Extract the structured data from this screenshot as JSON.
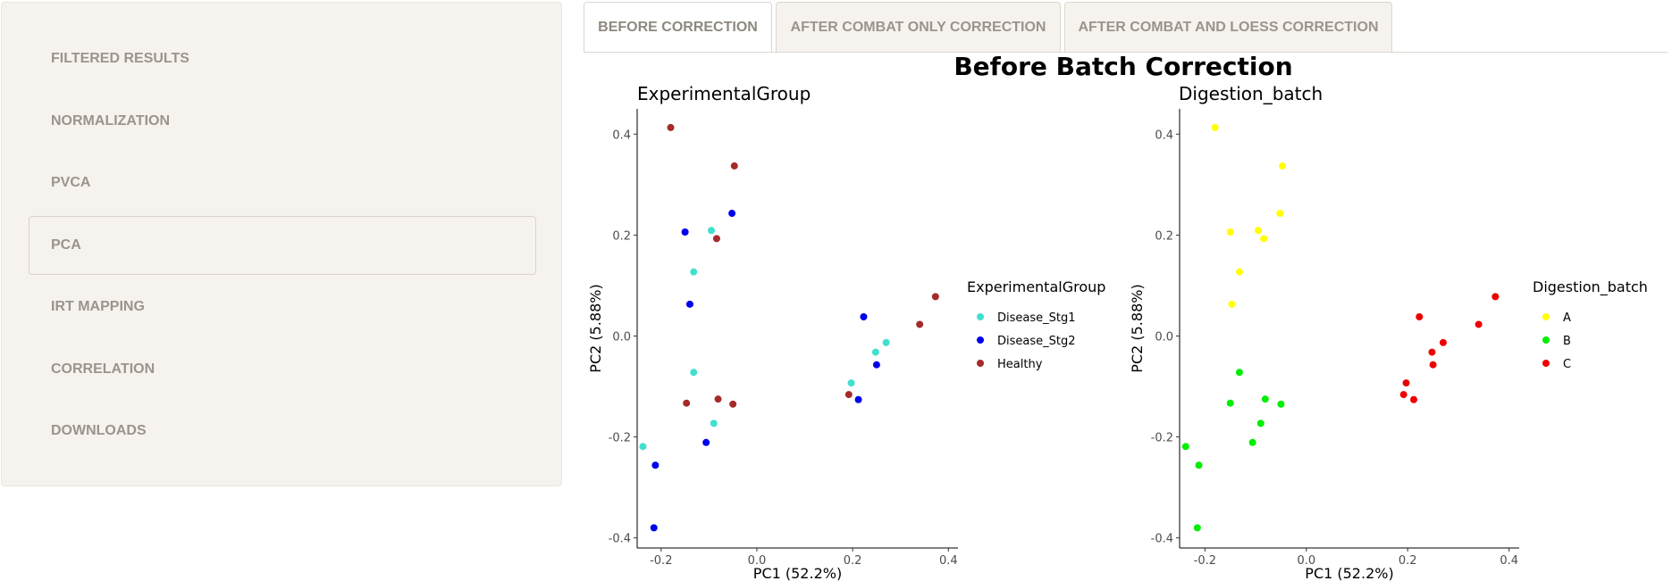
{
  "sidebar": {
    "items": [
      {
        "label": "FILTERED RESULTS",
        "active": false
      },
      {
        "label": "NORMALIZATION",
        "active": false
      },
      {
        "label": "PVCA",
        "active": false
      },
      {
        "label": "PCA",
        "active": true
      },
      {
        "label": "IRT MAPPING",
        "active": false
      },
      {
        "label": "CORRELATION",
        "active": false
      },
      {
        "label": "DOWNLOADS",
        "active": false
      }
    ]
  },
  "tabs": [
    {
      "label": "BEFORE CORRECTION",
      "active": true
    },
    {
      "label": "AFTER COMBAT ONLY CORRECTION",
      "active": false
    },
    {
      "label": "AFTER COMBAT AND LOESS CORRECTION",
      "active": false
    }
  ],
  "chart_data": {
    "type": "scatter",
    "title": "Before Batch Correction",
    "panels": [
      {
        "title": "ExperimentalGroup",
        "xlabel": "PC1 (52.2%)",
        "ylabel": "PC2 (5.88%)",
        "xlim": [
          -0.25,
          0.42
        ],
        "ylim": [
          -0.42,
          0.45
        ],
        "xticks": [
          -0.2,
          0.0,
          0.2,
          0.4
        ],
        "yticks": [
          -0.4,
          -0.2,
          0.0,
          0.2,
          0.4
        ],
        "xtick_labels": [
          "-0.2",
          "0.0",
          "0.2",
          "0.4"
        ],
        "ytick_labels": [
          "-0.4",
          "-0.2",
          "0.0",
          "0.2",
          "0.4"
        ],
        "legend": {
          "title": "ExperimentalGroup",
          "position": "right"
        },
        "series": [
          {
            "name": "Disease_Stg1",
            "color": "#40e0d0",
            "points": [
              [
                -0.238,
                -0.219
              ],
              [
                -0.15,
                0.206
              ],
              [
                -0.132,
                0.127
              ],
              [
                -0.132,
                -0.072
              ],
              [
                -0.095,
                0.209
              ],
              [
                -0.09,
                -0.173
              ],
              [
                0.197,
                -0.093
              ],
              [
                0.248,
                -0.032
              ],
              [
                0.27,
                -0.013
              ]
            ]
          },
          {
            "name": "Disease_Stg2",
            "color": "#0000ee",
            "points": [
              [
                -0.212,
                -0.256
              ],
              [
                -0.215,
                -0.38
              ],
              [
                -0.15,
                0.206
              ],
              [
                -0.14,
                0.063
              ],
              [
                -0.106,
                -0.211
              ],
              [
                -0.052,
                0.243
              ],
              [
                0.212,
                -0.126
              ],
              [
                0.223,
                0.038
              ],
              [
                0.25,
                -0.057
              ]
            ]
          },
          {
            "name": "Healthy",
            "color": "#a52a2a",
            "points": [
              [
                -0.18,
                0.413
              ],
              [
                -0.147,
                -0.133
              ],
              [
                -0.084,
                0.193
              ],
              [
                -0.081,
                -0.125
              ],
              [
                -0.047,
                0.337
              ],
              [
                -0.05,
                -0.135
              ],
              [
                0.192,
                -0.116
              ],
              [
                0.34,
                0.023
              ],
              [
                0.373,
                0.078
              ]
            ]
          }
        ]
      },
      {
        "title": "Digestion_batch",
        "xlabel": "PC1 (52.2%)",
        "ylabel": "PC2 (5.88%)",
        "xlim": [
          -0.25,
          0.42
        ],
        "ylim": [
          -0.42,
          0.45
        ],
        "xticks": [
          -0.2,
          0.0,
          0.2,
          0.4
        ],
        "yticks": [
          -0.4,
          -0.2,
          0.0,
          0.2,
          0.4
        ],
        "xtick_labels": [
          "-0.2",
          "0.0",
          "0.2",
          "0.4"
        ],
        "ytick_labels": [
          "-0.4",
          "-0.2",
          "0.0",
          "0.2",
          "0.4"
        ],
        "legend": {
          "title": "Digestion_batch",
          "position": "right"
        },
        "series": [
          {
            "name": "A",
            "color": "#ffff00",
            "points": [
              [
                -0.18,
                0.413
              ],
              [
                -0.15,
                0.206
              ],
              [
                -0.147,
                0.063
              ],
              [
                -0.132,
                0.127
              ],
              [
                -0.095,
                0.209
              ],
              [
                -0.084,
                0.193
              ],
              [
                -0.052,
                0.243
              ],
              [
                -0.047,
                0.337
              ]
            ]
          },
          {
            "name": "B",
            "color": "#00ee00",
            "points": [
              [
                -0.238,
                -0.219
              ],
              [
                -0.212,
                -0.256
              ],
              [
                -0.215,
                -0.38
              ],
              [
                -0.15,
                -0.133
              ],
              [
                -0.132,
                -0.072
              ],
              [
                -0.106,
                -0.211
              ],
              [
                -0.09,
                -0.173
              ],
              [
                -0.081,
                -0.125
              ],
              [
                -0.05,
                -0.135
              ]
            ]
          },
          {
            "name": "C",
            "color": "#ee0000",
            "points": [
              [
                0.192,
                -0.116
              ],
              [
                0.197,
                -0.093
              ],
              [
                0.212,
                -0.126
              ],
              [
                0.223,
                0.038
              ],
              [
                0.248,
                -0.032
              ],
              [
                0.25,
                -0.057
              ],
              [
                0.27,
                -0.013
              ],
              [
                0.34,
                0.023
              ],
              [
                0.373,
                0.078
              ]
            ]
          }
        ]
      }
    ]
  }
}
